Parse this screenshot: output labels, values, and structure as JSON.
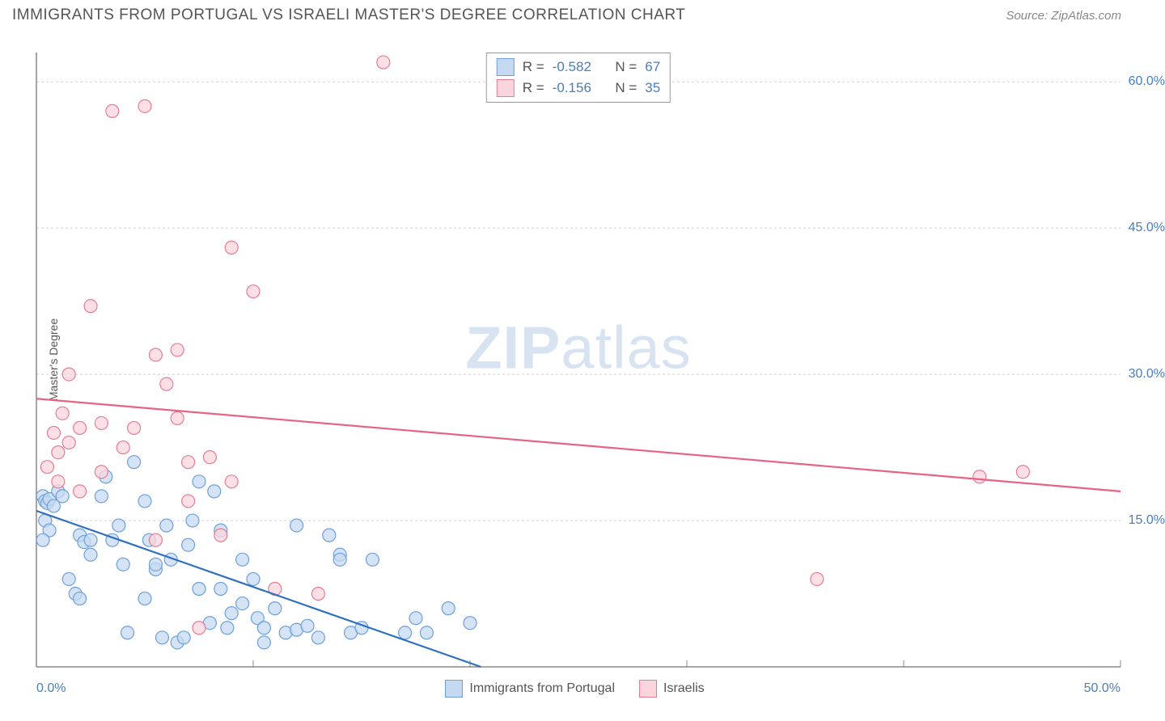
{
  "header": {
    "title": "IMMIGRANTS FROM PORTUGAL VS ISRAELI MASTER'S DEGREE CORRELATION CHART",
    "source": "Source: ZipAtlas.com"
  },
  "watermark": {
    "bold": "ZIP",
    "light": "atlas"
  },
  "chart": {
    "type": "scatter",
    "y_label": "Master's Degree",
    "x_range": [
      0,
      50
    ],
    "y_range": [
      0,
      63
    ],
    "x_ticks": [
      {
        "v": 0,
        "label": "0.0%"
      },
      {
        "v": 50,
        "label": "50.0%"
      }
    ],
    "y_ticks": [
      {
        "v": 15,
        "label": "15.0%"
      },
      {
        "v": 30,
        "label": "30.0%"
      },
      {
        "v": 45,
        "label": "45.0%"
      },
      {
        "v": 60,
        "label": "60.0%"
      }
    ],
    "grid_color": "#d0d0d0",
    "axis_color": "#888888",
    "background_color": "#ffffff",
    "marker_radius": 8,
    "marker_stroke_width": 1.2,
    "line_width": 2.2,
    "series": [
      {
        "name": "Immigrants from Portugal",
        "fill": "#c5d9f1",
        "stroke": "#6f9fd8",
        "line_color": "#2e6fbe",
        "R": "-0.582",
        "N": "67",
        "regression": {
          "x1": 0,
          "y1": 16.0,
          "x2": 20.5,
          "y2": 0
        },
        "points": [
          [
            0.3,
            17.5
          ],
          [
            0.4,
            17.0
          ],
          [
            0.5,
            16.8
          ],
          [
            0.6,
            17.2
          ],
          [
            0.8,
            16.5
          ],
          [
            0.4,
            15.0
          ],
          [
            0.6,
            14.0
          ],
          [
            0.3,
            13.0
          ],
          [
            1.0,
            18.0
          ],
          [
            1.2,
            17.5
          ],
          [
            1.5,
            9.0
          ],
          [
            1.8,
            7.5
          ],
          [
            2.0,
            13.5
          ],
          [
            2.2,
            12.8
          ],
          [
            2.5,
            13.0
          ],
          [
            2.0,
            7.0
          ],
          [
            2.5,
            11.5
          ],
          [
            3.0,
            17.5
          ],
          [
            3.2,
            19.5
          ],
          [
            3.5,
            13.0
          ],
          [
            3.8,
            14.5
          ],
          [
            4.0,
            10.5
          ],
          [
            4.2,
            3.5
          ],
          [
            4.5,
            21.0
          ],
          [
            5.0,
            17.0
          ],
          [
            5.2,
            13.0
          ],
          [
            5.5,
            10.0
          ],
          [
            5.0,
            7.0
          ],
          [
            5.5,
            10.5
          ],
          [
            5.8,
            3.0
          ],
          [
            6.0,
            14.5
          ],
          [
            6.2,
            11.0
          ],
          [
            6.5,
            2.5
          ],
          [
            6.8,
            3.0
          ],
          [
            7.0,
            12.5
          ],
          [
            7.2,
            15.0
          ],
          [
            7.5,
            19.0
          ],
          [
            7.5,
            8.0
          ],
          [
            8.0,
            4.5
          ],
          [
            8.2,
            18.0
          ],
          [
            8.5,
            14.0
          ],
          [
            8.5,
            8.0
          ],
          [
            8.8,
            4.0
          ],
          [
            9.0,
            5.5
          ],
          [
            9.5,
            11.0
          ],
          [
            9.5,
            6.5
          ],
          [
            10.0,
            9.0
          ],
          [
            10.2,
            5.0
          ],
          [
            10.5,
            2.5
          ],
          [
            10.5,
            4.0
          ],
          [
            11.0,
            6.0
          ],
          [
            11.5,
            3.5
          ],
          [
            12.0,
            14.5
          ],
          [
            12.0,
            3.8
          ],
          [
            12.5,
            4.2
          ],
          [
            13.0,
            3.0
          ],
          [
            13.5,
            13.5
          ],
          [
            14.0,
            11.5
          ],
          [
            14.0,
            11.0
          ],
          [
            14.5,
            3.5
          ],
          [
            15.0,
            4.0
          ],
          [
            15.5,
            11.0
          ],
          [
            17.0,
            3.5
          ],
          [
            17.5,
            5.0
          ],
          [
            18.0,
            3.5
          ],
          [
            19.0,
            6.0
          ],
          [
            20.0,
            4.5
          ]
        ]
      },
      {
        "name": "Israelis",
        "fill": "#fbd5dd",
        "stroke": "#e77c94",
        "line_color": "#e56384",
        "R": "-0.156",
        "N": "35",
        "regression": {
          "x1": 0,
          "y1": 27.5,
          "x2": 50,
          "y2": 18.0
        },
        "points": [
          [
            0.5,
            20.5
          ],
          [
            0.8,
            24.0
          ],
          [
            1.0,
            22.0
          ],
          [
            1.2,
            26.0
          ],
          [
            1.0,
            19.0
          ],
          [
            1.5,
            23.0
          ],
          [
            1.5,
            30.0
          ],
          [
            2.0,
            24.5
          ],
          [
            2.5,
            37.0
          ],
          [
            3.0,
            25.0
          ],
          [
            3.5,
            57.0
          ],
          [
            4.0,
            22.5
          ],
          [
            4.5,
            24.5
          ],
          [
            5.0,
            57.5
          ],
          [
            5.5,
            13.0
          ],
          [
            5.5,
            32.0
          ],
          [
            6.0,
            29.0
          ],
          [
            6.5,
            25.5
          ],
          [
            6.5,
            32.5
          ],
          [
            7.0,
            21.0
          ],
          [
            7.5,
            4.0
          ],
          [
            8.0,
            21.5
          ],
          [
            8.5,
            13.5
          ],
          [
            9.0,
            19.0
          ],
          [
            9.0,
            43.0
          ],
          [
            10.0,
            38.5
          ],
          [
            11.0,
            8.0
          ],
          [
            13.0,
            7.5
          ],
          [
            16.0,
            62.0
          ],
          [
            36.0,
            9.0
          ],
          [
            43.5,
            19.5
          ],
          [
            45.5,
            20.0
          ],
          [
            7.0,
            17.0
          ],
          [
            3.0,
            20.0
          ],
          [
            2.0,
            18.0
          ]
        ]
      }
    ]
  }
}
